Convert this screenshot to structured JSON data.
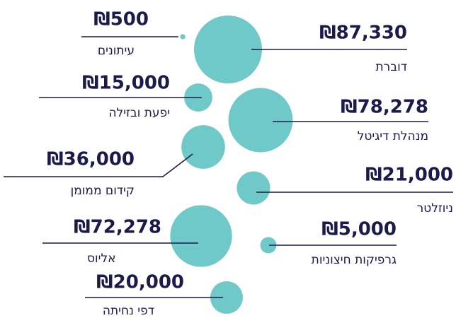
{
  "chart_data": {
    "type": "bubble",
    "categories": [
      "עיתונים",
      "דוברת",
      "יפעת ובזילה",
      "מנהלת דיגיטל",
      "קידום ממומן",
      "ניוזלטר",
      "אליוס",
      "גרפיקות חיצוניות",
      "דפי נחיתה"
    ],
    "values": [
      500,
      87330,
      15000,
      78278,
      36000,
      21000,
      72278,
      5000,
      20000
    ],
    "value_labels": [
      "₪500",
      "₪87,330",
      "₪15,000",
      "₪78,278",
      "₪36,000",
      "₪21,000",
      "₪72,278",
      "₪5,000",
      "₪20,000"
    ],
    "color": "#6ec9c8"
  }
}
